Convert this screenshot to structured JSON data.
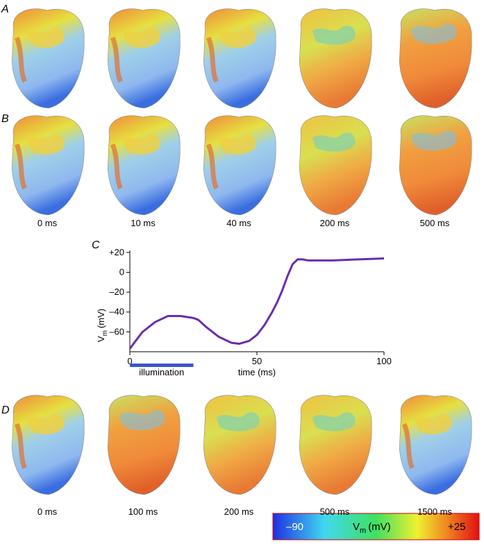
{
  "panels": {
    "a": "A",
    "b": "B",
    "c": "C",
    "d": "D"
  },
  "row_b_times": [
    "0 ms",
    "10 ms",
    "40 ms",
    "200 ms",
    "500 ms"
  ],
  "row_d_times": [
    "0 ms",
    "100 ms",
    "200 ms",
    "500 ms",
    "1500 ms"
  ],
  "colorbar": {
    "min": {
      "value": -90,
      "label": "–90"
    },
    "max": {
      "value": 25,
      "label": "+25"
    },
    "label": "V",
    "label_sub": "m",
    "label_unit": "(mV)"
  },
  "chart_data": {
    "type": "line",
    "x_label": "time (ms)",
    "y_label": "V",
    "y_label_sub": "m",
    "y_label_unit": "(mV)",
    "xlim": [
      0,
      100
    ],
    "xticks": [
      0,
      50,
      100
    ],
    "ylim": [
      -80,
      22
    ],
    "yticks": [
      {
        "value": 20,
        "label": "+20"
      },
      0,
      {
        "value": -20,
        "label": "–20"
      },
      {
        "value": -40,
        "label": "–40"
      },
      {
        "value": -60,
        "label": "–60"
      }
    ],
    "x": [
      0,
      2,
      5,
      10,
      15,
      20,
      25,
      27,
      30,
      35,
      40,
      43,
      47,
      50,
      53,
      56,
      58,
      60,
      62,
      64,
      66,
      68,
      70,
      80,
      90,
      100
    ],
    "series": [
      {
        "color": "#6a2bb0",
        "values": [
          -77,
          -70,
          -60,
          -50,
          -44,
          -44,
          -46,
          -48,
          -55,
          -65,
          -71,
          -72,
          -69,
          -63,
          -53,
          -40,
          -30,
          -18,
          -4,
          8,
          13,
          13,
          12,
          12,
          13,
          14
        ]
      }
    ],
    "illumination": {
      "label": "illumination",
      "start": 0,
      "end": 25,
      "color": "#3b55d0"
    }
  }
}
